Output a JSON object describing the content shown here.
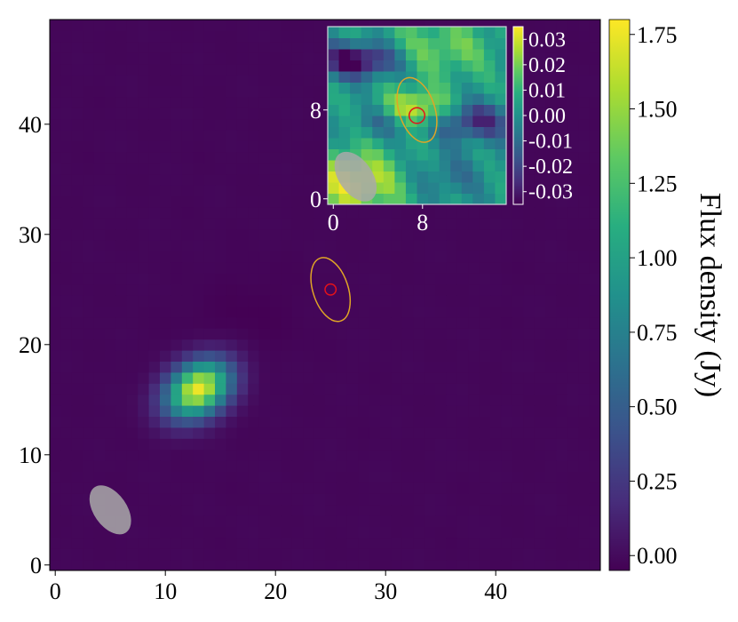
{
  "chart_data": {
    "type": "heatmap",
    "title": "",
    "xlabel": "",
    "ylabel": "",
    "colormap": "viridis",
    "main": {
      "xlim": [
        -0.5,
        49.5
      ],
      "ylim": [
        -0.5,
        49.5
      ],
      "xticks": [
        0,
        10,
        20,
        30,
        40
      ],
      "yticks": [
        0,
        10,
        20,
        30,
        40
      ],
      "xtick_labels": [
        "0",
        "10",
        "20",
        "30",
        "40"
      ],
      "ytick_labels": [
        "0",
        "10",
        "20",
        "30",
        "40"
      ],
      "source": {
        "x": 13,
        "y": 16,
        "peak": 1.78,
        "sigma_major": 2.2,
        "sigma_minor": 1.6,
        "pa_deg": 35
      },
      "background": -0.02,
      "negative_lobe": {
        "x": 17,
        "y": 22,
        "depth": -0.03
      },
      "beam": {
        "x": 5,
        "y": 5,
        "major": 5.0,
        "minor": 3.0,
        "angle_deg": 35,
        "color": "#a9a9a9"
      },
      "aperture": {
        "x": 25,
        "y": 25,
        "rx": 1.6,
        "ry": 3.0,
        "angle_deg": -18,
        "color": "#e0a526"
      },
      "marker": {
        "x": 25,
        "y": 25,
        "r": 0.5,
        "color": "#e4121a"
      }
    },
    "inset": {
      "xlim": [
        -0.5,
        15.5
      ],
      "ylim": [
        -0.5,
        15.5
      ],
      "xticks": [
        0,
        8
      ],
      "yticks": [
        0,
        8
      ],
      "xtick_labels": [
        "0",
        "8"
      ],
      "ytick_labels": [
        "0",
        "8"
      ],
      "vmin": -0.035,
      "vmax": 0.035,
      "colorbar_ticks": [
        0.03,
        0.02,
        0.01,
        0.0,
        -0.01,
        -0.02,
        -0.03
      ],
      "colorbar_tick_labels": [
        "0.03",
        "0.02",
        "0.01",
        "0.00",
        "-0.01",
        "-0.02",
        "-0.03"
      ],
      "beam": {
        "x": 2,
        "y": 2,
        "major": 5.0,
        "minor": 3.0,
        "angle_deg": 35,
        "color": "#a9a9a9"
      },
      "aperture": {
        "x": 7.5,
        "y": 8,
        "rx": 1.6,
        "ry": 3.0,
        "angle_deg": -18,
        "color": "#e0a526"
      },
      "marker": {
        "x": 7.5,
        "y": 7.5,
        "r": 0.5,
        "color": "#e4121a"
      }
    },
    "colorbar": {
      "label": "Flux density (Jy)",
      "vmin": -0.05,
      "vmax": 1.8,
      "ticks": [
        0.0,
        0.25,
        0.5,
        0.75,
        1.0,
        1.25,
        1.5,
        1.75
      ],
      "tick_labels": [
        "0.00",
        "0.25",
        "0.50",
        "0.75",
        "1.00",
        "1.25",
        "1.50",
        "1.75"
      ]
    }
  }
}
